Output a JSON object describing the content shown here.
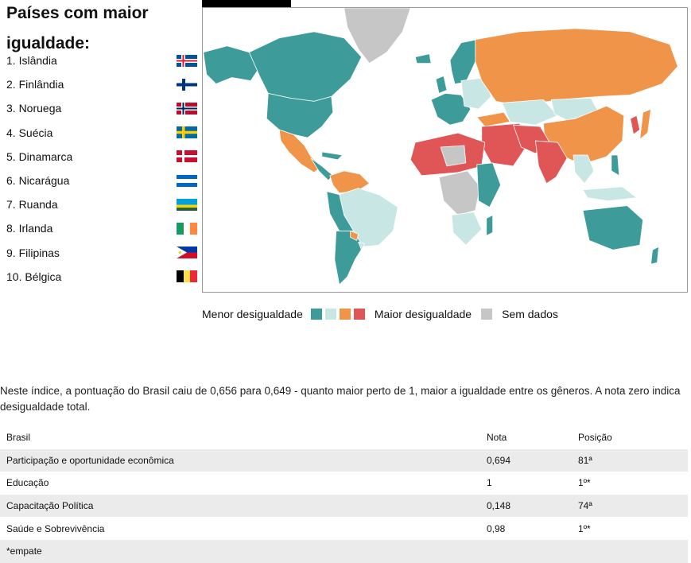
{
  "ranking": {
    "title": "Países com maior igualdade:",
    "items": [
      {
        "label": "1. Islândia",
        "flag": "iceland-flag"
      },
      {
        "label": "2. Finlândia",
        "flag": "finland-flag"
      },
      {
        "label": "3. Noruega",
        "flag": "norway-flag"
      },
      {
        "label": "4. Suécia",
        "flag": "sweden-flag"
      },
      {
        "label": "5. Dinamarca",
        "flag": "denmark-flag"
      },
      {
        "label": "6. Nicarágua",
        "flag": "nicaragua-flag"
      },
      {
        "label": "7. Ruanda",
        "flag": "rwanda-flag"
      },
      {
        "label": "8. Irlanda",
        "flag": "ireland-flag"
      },
      {
        "label": "9. Filipinas",
        "flag": "philippines-flag"
      },
      {
        "label": "10. Bélgica",
        "flag": "belgium-flag"
      }
    ]
  },
  "map": {
    "colors": {
      "least_inequality": "#3d9c99",
      "low_inequality": "#c8e6e4",
      "high_inequality": "#f0944a",
      "most_inequality": "#e05556",
      "no_data": "#c6c6c6",
      "border": "#ffffff"
    }
  },
  "legend": {
    "less_label": "Menor desigualdade",
    "more_label": "Maior desigualdade",
    "no_data_label": "Sem dados",
    "swatches": [
      "#3d9c99",
      "#c8e6e4",
      "#f0944a",
      "#e05556"
    ],
    "no_data_color": "#c6c6c6"
  },
  "description": "Neste índice, a pontuação do Brasil caiu de 0,656 para 0,649 - quanto maior perto de 1, maior a igualdade entre os gêneros. A nota zero indica desigualdade total.",
  "table": {
    "headers": [
      "Brasil",
      "Nota",
      "Posição"
    ],
    "rows": [
      [
        "Participação e oportunidade econômica",
        "0,694",
        "81ª"
      ],
      [
        "Educação",
        "1",
        "1º*"
      ],
      [
        "Capacitação Política",
        "0,148",
        "74ª"
      ],
      [
        "Saúde e Sobrevivência",
        "0,98",
        "1º*"
      ]
    ],
    "footnote": "*empate"
  }
}
